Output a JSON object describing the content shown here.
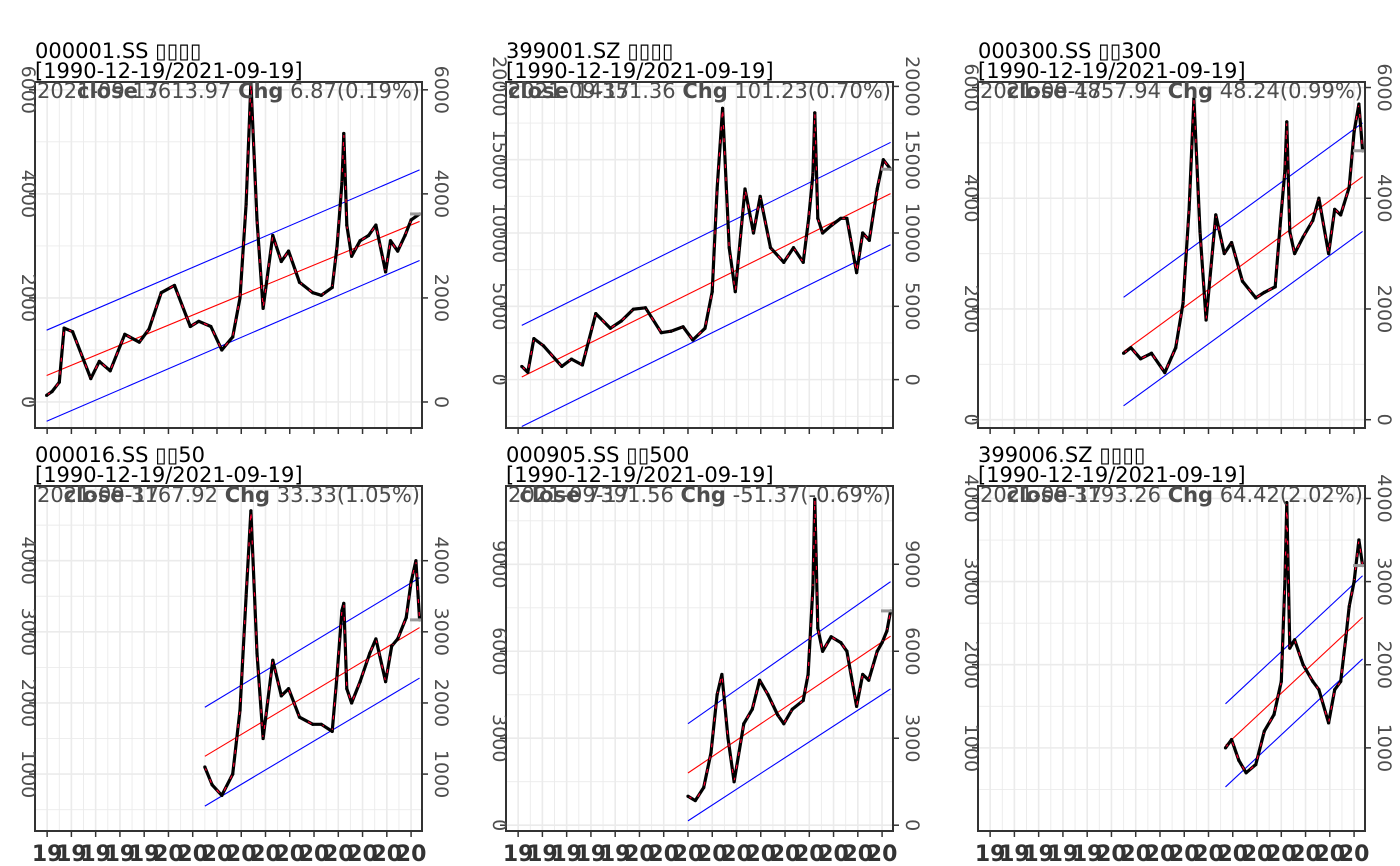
{
  "chart_data": [
    {
      "type": "line",
      "symbol": "000001.SS",
      "title": "000001.SS ▯▯▯▯",
      "date_range": "[1990-12-19/2021-09-19]",
      "last_date": "2021-09-17",
      "close_label": "close",
      "close": "3613.97",
      "chg_label": "Chg",
      "chg": "6.87",
      "chg_pct": "(0.19%)",
      "ylim": [
        -500,
        6150
      ],
      "yticks": [
        0,
        2000,
        4000,
        6000
      ],
      "x": [
        1990.96,
        1991.4,
        1992.0,
        1992.4,
        1993.1,
        1994.6,
        1995.3,
        1996.2,
        1997.4,
        1998.6,
        1999.4,
        2000.4,
        2001.5,
        2002.8,
        2003.5,
        2004.5,
        2005.4,
        2006.3,
        2006.9,
        2007.4,
        2007.8,
        2008.3,
        2008.8,
        2009.6,
        2010.3,
        2010.9,
        2011.8,
        2012.9,
        2013.6,
        2014.5,
        2014.9,
        2015.3,
        2015.45,
        2015.7,
        2016.1,
        2016.8,
        2017.5,
        2018.1,
        2018.9,
        2019.3,
        2019.9,
        2020.5,
        2021.0,
        2021.7
      ],
      "values": [
        128,
        200,
        380,
        1420,
        1350,
        450,
        780,
        600,
        1300,
        1150,
        1400,
        2100,
        2240,
        1450,
        1550,
        1450,
        1000,
        1250,
        2000,
        3800,
        6124,
        3500,
        1800,
        3200,
        2700,
        2900,
        2300,
        2100,
        2050,
        2200,
        3000,
        4200,
        5160,
        3400,
        2800,
        3100,
        3200,
        3400,
        2500,
        3100,
        2900,
        3200,
        3500,
        3614
      ],
      "reg_line": [
        [
          1990.96,
          510
        ],
        [
          2021.7,
          3470
        ]
      ],
      "upper_band": [
        [
          1990.96,
          1380
        ],
        [
          2021.7,
          4460
        ]
      ],
      "lower_band": [
        [
          1990.96,
          -370
        ],
        [
          2021.7,
          2720
        ]
      ]
    },
    {
      "type": "line",
      "symbol": "399001.SZ",
      "title": "399001.SZ ▯▯▯▯",
      "date_range": "[1990-12-19/2021-09-19]",
      "last_date": "2021-09-17",
      "close_label": "close",
      "close": "14351.36",
      "chg_label": "Chg",
      "chg": "101.23",
      "chg_pct": "(0.70%)",
      "ylim": [
        -3300,
        20300
      ],
      "yticks": [
        0,
        5000,
        10000,
        15000,
        20000
      ],
      "x": [
        1991.3,
        1991.8,
        1992.3,
        1993.1,
        1994.6,
        1995.4,
        1996.3,
        1997.4,
        1998.6,
        1999.5,
        2000.5,
        2001.5,
        2002.8,
        2003.6,
        2004.6,
        2005.4,
        2006.4,
        2007.0,
        2007.4,
        2007.85,
        2008.4,
        2008.9,
        2009.7,
        2010.4,
        2010.95,
        2011.8,
        2012.9,
        2013.7,
        2014.5,
        2014.95,
        2015.3,
        2015.45,
        2015.7,
        2016.1,
        2016.8,
        2017.6,
        2018.1,
        2018.9,
        2019.4,
        2019.95,
        2020.6,
        2021.1,
        2021.7
      ],
      "values": [
        900,
        500,
        2800,
        2300,
        900,
        1400,
        1000,
        4500,
        3500,
        4000,
        4800,
        4900,
        3200,
        3300,
        3600,
        2700,
        3500,
        6000,
        13000,
        18500,
        9000,
        6000,
        13000,
        10000,
        12500,
        9000,
        8000,
        9000,
        8000,
        11000,
        14000,
        18200,
        11000,
        10000,
        10500,
        11000,
        11000,
        7300,
        10000,
        9500,
        13000,
        15000,
        14351
      ],
      "reg_line": [
        [
          1991.3,
          180
        ],
        [
          2021.7,
          12690
        ]
      ],
      "upper_band": [
        [
          1991.3,
          3700
        ],
        [
          2021.7,
          16180
        ]
      ],
      "lower_band": [
        [
          1991.3,
          -3200
        ],
        [
          2021.7,
          9200
        ]
      ]
    },
    {
      "type": "line",
      "symbol": "000300.SS",
      "title": "000300.SS ▯▯300",
      "date_range": "[1990-12-19/2021-09-19]",
      "last_date": "2021-09-17",
      "close_label": "close",
      "close": "4857.94",
      "chg_label": "Chg",
      "chg": "48.24",
      "chg_pct": "(0.99%)",
      "ylim": [
        -150,
        6100
      ],
      "yticks": [
        0,
        2000,
        4000,
        6000
      ],
      "x": [
        2002.0,
        2002.6,
        2003.4,
        2004.3,
        2005.4,
        2006.3,
        2006.9,
        2007.4,
        2007.8,
        2008.3,
        2008.8,
        2009.6,
        2010.3,
        2010.9,
        2011.8,
        2012.9,
        2013.6,
        2014.5,
        2014.9,
        2015.3,
        2015.45,
        2015.7,
        2016.1,
        2016.8,
        2017.6,
        2018.1,
        2018.9,
        2019.4,
        2019.9,
        2020.6,
        2021.0,
        2021.4,
        2021.7
      ],
      "values": [
        1200,
        1300,
        1100,
        1200,
        850,
        1300,
        2100,
        3800,
        5800,
        3400,
        1800,
        3700,
        3000,
        3200,
        2500,
        2200,
        2300,
        2400,
        3500,
        4500,
        5380,
        3400,
        3000,
        3300,
        3600,
        4000,
        3000,
        3800,
        3700,
        4200,
        5200,
        5700,
        4858
      ],
      "reg_line": [
        [
          2002.0,
          1230
        ],
        [
          2021.7,
          4390
        ]
      ],
      "upper_band": [
        [
          2002.0,
          2210
        ],
        [
          2021.7,
          5360
        ]
      ],
      "lower_band": [
        [
          2002.0,
          250
        ],
        [
          2021.7,
          3400
        ]
      ]
    },
    {
      "type": "line",
      "symbol": "000016.SS",
      "title": "000016.SS ▯▯50",
      "date_range": "[1990-12-19/2021-09-19]",
      "last_date": "2021-09-17",
      "close_label": "close",
      "close": "3167.92",
      "chg_label": "Chg",
      "chg": "33.33",
      "chg_pct": "(1.05%)",
      "ylim": [
        200,
        5050
      ],
      "yticks": [
        1000,
        2000,
        3000,
        4000
      ],
      "x": [
        2004.0,
        2004.6,
        2005.4,
        2006.3,
        2006.9,
        2007.4,
        2007.8,
        2008.3,
        2008.8,
        2009.6,
        2010.3,
        2010.9,
        2011.8,
        2012.9,
        2013.6,
        2014.5,
        2014.9,
        2015.3,
        2015.45,
        2015.7,
        2016.1,
        2016.8,
        2017.6,
        2018.1,
        2018.9,
        2019.4,
        2019.9,
        2020.6,
        2021.0,
        2021.4,
        2021.7
      ],
      "values": [
        1100,
        850,
        700,
        1000,
        1900,
        3500,
        4700,
        2700,
        1500,
        2600,
        2100,
        2200,
        1800,
        1700,
        1700,
        1600,
        2400,
        3300,
        3400,
        2200,
        2000,
        2300,
        2700,
        2900,
        2300,
        2800,
        2900,
        3200,
        3700,
        4000,
        3168
      ],
      "reg_line": [
        [
          2004.0,
          1250
        ],
        [
          2021.7,
          3060
        ]
      ],
      "upper_band": [
        [
          2004.0,
          1940
        ],
        [
          2021.7,
          3760
        ]
      ],
      "lower_band": [
        [
          2004.0,
          550
        ],
        [
          2021.7,
          2350
        ]
      ]
    },
    {
      "type": "line",
      "symbol": "000905.SS",
      "title": "000905.SS ▯▯500",
      "date_range": "[1990-12-19/2021-09-19]",
      "last_date": "2021-09-17",
      "close_label": "close",
      "close": "7391.56",
      "chg_label": "Chg",
      "chg": "-51.37",
      "chg_pct": "(-0.69%)",
      "ylim": [
        -200,
        11700
      ],
      "yticks": [
        0,
        3000,
        6000,
        9000
      ],
      "x": [
        2005.0,
        2005.6,
        2006.3,
        2006.9,
        2007.4,
        2007.8,
        2008.3,
        2008.8,
        2009.6,
        2010.3,
        2010.9,
        2011.6,
        2012.4,
        2012.9,
        2013.6,
        2014.5,
        2014.9,
        2015.3,
        2015.45,
        2015.7,
        2016.1,
        2016.8,
        2017.6,
        2018.1,
        2018.9,
        2019.4,
        2019.9,
        2020.6,
        2021.0,
        2021.4,
        2021.7
      ],
      "values": [
        1000,
        850,
        1300,
        2500,
        4500,
        5200,
        3000,
        1500,
        3500,
        4000,
        5000,
        4500,
        3800,
        3500,
        4000,
        4300,
        5200,
        8200,
        11250,
        6800,
        6000,
        6500,
        6300,
        6000,
        4100,
        5200,
        5000,
        6000,
        6300,
        6700,
        7392
      ],
      "reg_line": [
        [
          2005.0,
          1800
        ],
        [
          2021.7,
          6520
        ]
      ],
      "upper_band": [
        [
          2005.0,
          3500
        ],
        [
          2021.7,
          8400
        ]
      ],
      "lower_band": [
        [
          2005.0,
          150
        ],
        [
          2021.7,
          4700
        ]
      ]
    },
    {
      "type": "line",
      "symbol": "399006.SZ",
      "title": "399006.SZ ▯▯▯▯",
      "date_range": "[1990-12-19/2021-09-19]",
      "last_date": "2021-09-17",
      "close_label": "close",
      "close": "3193.26",
      "chg_label": "Chg",
      "chg": "64.42",
      "chg_pct": "(2.02%)",
      "ylim": [
        0,
        4150
      ],
      "yticks": [
        1000,
        2000,
        3000,
        4000
      ],
      "x": [
        2010.4,
        2010.9,
        2011.5,
        2012.1,
        2012.9,
        2013.6,
        2014.4,
        2015.0,
        2015.3,
        2015.45,
        2015.7,
        2016.1,
        2016.8,
        2017.6,
        2018.1,
        2018.9,
        2019.4,
        2019.9,
        2020.3,
        2020.6,
        2021.0,
        2021.4,
        2021.7
      ],
      "values": [
        1000,
        1100,
        850,
        700,
        800,
        1200,
        1400,
        1800,
        3000,
        3950,
        2200,
        2300,
        2000,
        1800,
        1700,
        1300,
        1700,
        1800,
        2300,
        2700,
        3000,
        3500,
        3193
      ],
      "reg_line": [
        [
          2010.4,
          1030
        ],
        [
          2021.7,
          2570
        ]
      ],
      "upper_band": [
        [
          2010.4,
          1530
        ],
        [
          2021.7,
          3070
        ]
      ],
      "lower_band": [
        [
          2010.4,
          530
        ],
        [
          2021.7,
          2070
        ]
      ]
    }
  ],
  "x_axis": {
    "xlim": [
      1990.0,
      2021.9
    ],
    "ticks": [
      1991,
      1993,
      1995,
      1997,
      1999,
      2001,
      2003,
      2005,
      2007,
      2009,
      2011,
      2013,
      2015,
      2017,
      2019,
      2021
    ],
    "labels": [
      "19",
      "19",
      "19",
      "19",
      "19",
      "20",
      "20",
      "20",
      "20",
      "20",
      "20",
      "20",
      "20",
      "20",
      "20",
      "20"
    ]
  },
  "colors": {
    "price_line": "#000000",
    "price_dash": "#ff0033",
    "regression_line": "#ff0000",
    "band_lines": "#0000ff",
    "grid": "#ebebeb",
    "axis": "#333333"
  }
}
